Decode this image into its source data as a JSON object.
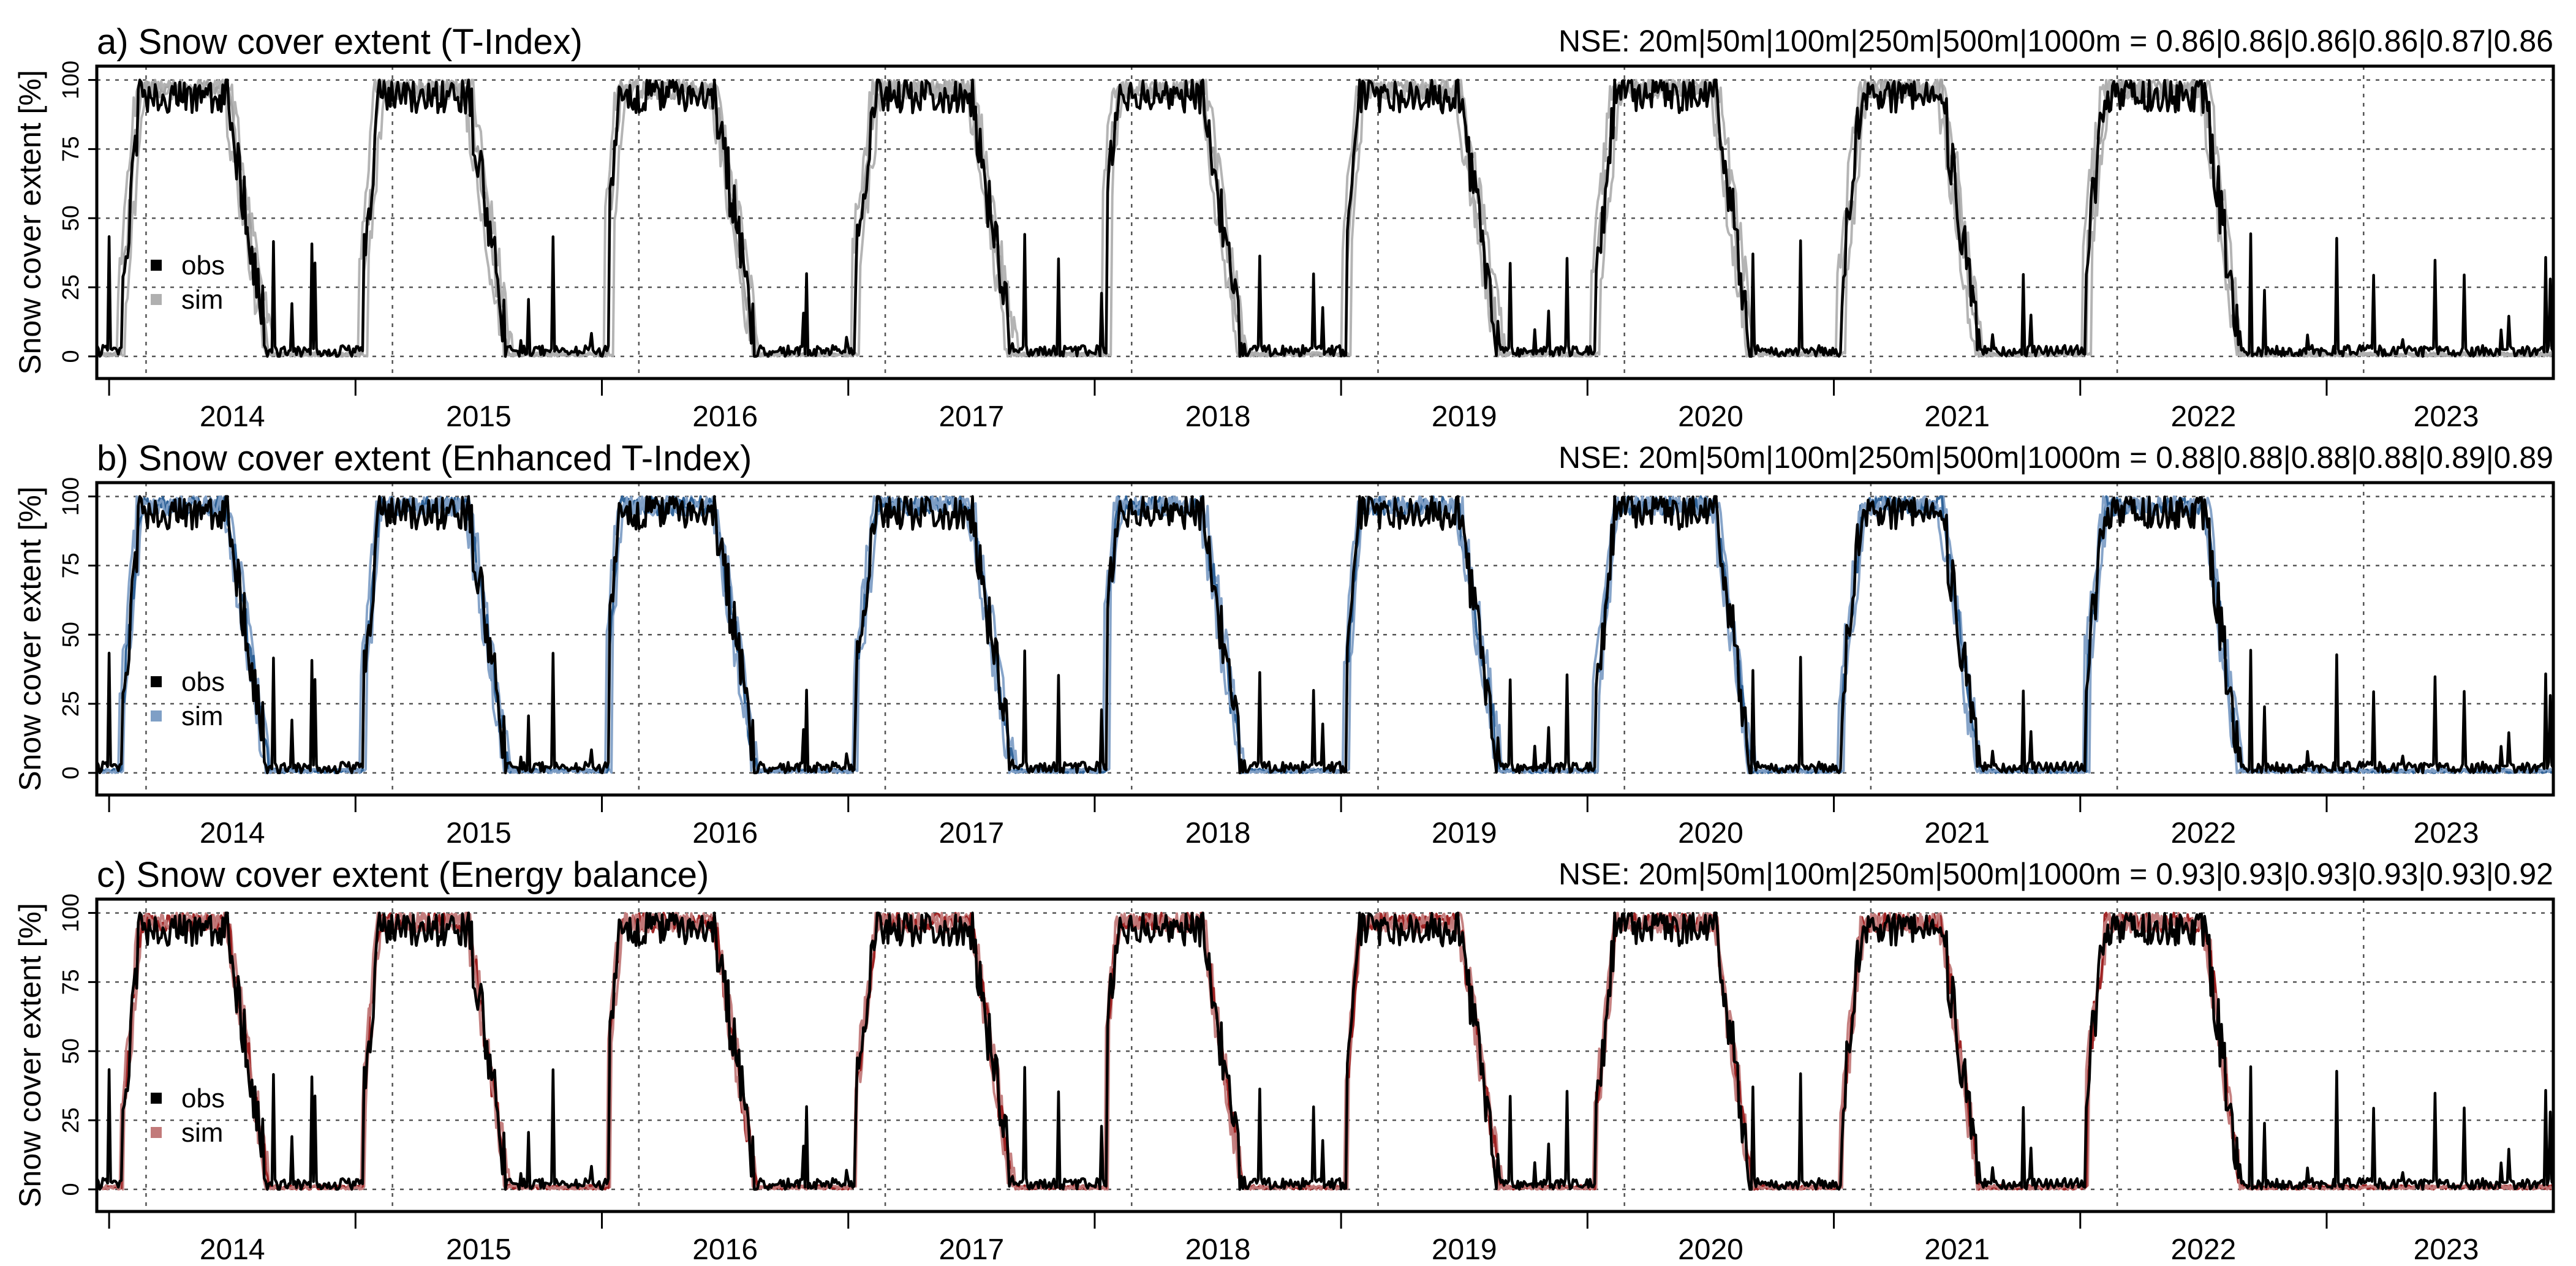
{
  "colors": {
    "obs": "#000000",
    "grid": "#555555"
  },
  "chart_data": [
    {
      "type": "line",
      "title": "a) Snow cover extent (T-Index)",
      "annotation": "NSE: 20m|50m|100m|250m|500m|1000m = 0.86|0.86|0.86|0.86|0.87|0.86",
      "ylabel": "Snow cover extent [%]",
      "ylim": [
        -8,
        105
      ],
      "yticks": [
        0,
        25,
        50,
        75,
        100
      ],
      "xticks": [
        "2014",
        "2015",
        "2016",
        "2017",
        "2018",
        "2019",
        "2020",
        "2021",
        "2022",
        "2023"
      ],
      "grid": true,
      "legend": {
        "position": "left",
        "entries": [
          "obs",
          "sim"
        ]
      },
      "sim_color": "#b0b0b0",
      "sim_stroke": "#a0a0a0",
      "sim_bias": [
        -3,
        0,
        3
      ],
      "nse": {
        "20m": 0.86,
        "50m": 0.86,
        "100m": 0.86,
        "250m": 0.86,
        "500m": 0.87,
        "1000m": 0.86
      },
      "series": [
        {
          "name": "obs",
          "profile": "snow_cover_seasonal",
          "seasons": [
            {
              "start": 2013.0,
              "fullStart": 2013.02,
              "meltStart": 2013.35,
              "meltEnd": 2013.5,
              "end": 2013.9
            },
            {
              "start": 2013.88,
              "fullStart": 2013.98,
              "meltStart": 2014.32,
              "meltEnd": 2014.5,
              "end": 2014.88
            },
            {
              "start": 2014.85,
              "fullStart": 2014.95,
              "meltStart": 2015.3,
              "meltEnd": 2015.47,
              "end": 2015.88
            },
            {
              "start": 2015.83,
              "fullStart": 2015.93,
              "meltStart": 2016.3,
              "meltEnd": 2016.48,
              "end": 2016.88
            },
            {
              "start": 2016.83,
              "fullStart": 2016.97,
              "meltStart": 2017.34,
              "meltEnd": 2017.52,
              "end": 2017.9
            },
            {
              "start": 2017.82,
              "fullStart": 2017.95,
              "meltStart": 2018.28,
              "meltEnd": 2018.45,
              "end": 2018.87
            },
            {
              "start": 2018.84,
              "fullStart": 2018.93,
              "meltStart": 2019.32,
              "meltEnd": 2019.5,
              "end": 2019.88
            },
            {
              "start": 2019.85,
              "fullStart": 2019.97,
              "meltStart": 2020.36,
              "meltEnd": 2020.52,
              "end": 2020.88
            },
            {
              "start": 2020.85,
              "fullStart": 2020.97,
              "meltStart": 2021.28,
              "meltEnd": 2021.44,
              "end": 2021.88
            },
            {
              "start": 2021.82,
              "fullStart": 2021.96,
              "meltStart": 2022.35,
              "meltEnd": 2022.5,
              "end": 2023.0
            }
          ]
        }
      ]
    },
    {
      "type": "line",
      "title": "b) Snow cover extent (Enhanced T-Index)",
      "annotation": "NSE: 20m|50m|100m|250m|500m|1000m = 0.88|0.88|0.88|0.88|0.89|0.89",
      "ylabel": "Snow cover extent [%]",
      "ylim": [
        -8,
        105
      ],
      "yticks": [
        0,
        25,
        50,
        75,
        100
      ],
      "xticks": [
        "2014",
        "2015",
        "2016",
        "2017",
        "2018",
        "2019",
        "2020",
        "2021",
        "2022",
        "2023"
      ],
      "grid": true,
      "legend": {
        "position": "left",
        "entries": [
          "obs",
          "sim"
        ]
      },
      "sim_color": "#7f9fc6",
      "sim_stroke": "#2a5f96",
      "sim_bias": [
        -2,
        0,
        2
      ],
      "nse": {
        "20m": 0.88,
        "50m": 0.88,
        "100m": 0.88,
        "250m": 0.88,
        "500m": 0.89,
        "1000m": 0.89
      },
      "series": [
        {
          "name": "obs",
          "profile": "snow_cover_seasonal"
        }
      ]
    },
    {
      "type": "line",
      "title": "c) Snow cover extent (Energy balance)",
      "annotation": "NSE: 20m|50m|100m|250m|500m|1000m = 0.93|0.93|0.93|0.93|0.93|0.92",
      "ylabel": "Snow cover extent [%]",
      "ylim": [
        -8,
        105
      ],
      "yticks": [
        0,
        25,
        50,
        75,
        100
      ],
      "xticks": [
        "2014",
        "2015",
        "2016",
        "2017",
        "2018",
        "2019",
        "2020",
        "2021",
        "2022",
        "2023"
      ],
      "grid": true,
      "legend": {
        "position": "left",
        "entries": [
          "obs",
          "sim"
        ]
      },
      "sim_color": "#c27a7a",
      "sim_stroke": "#9c1c1c",
      "sim_bias": [
        -1,
        0,
        1
      ],
      "nse": {
        "20m": 0.93,
        "50m": 0.93,
        "100m": 0.93,
        "250m": 0.93,
        "500m": 0.93,
        "1000m": 0.92
      },
      "series": [
        {
          "name": "obs",
          "profile": "snow_cover_seasonal"
        }
      ]
    }
  ]
}
